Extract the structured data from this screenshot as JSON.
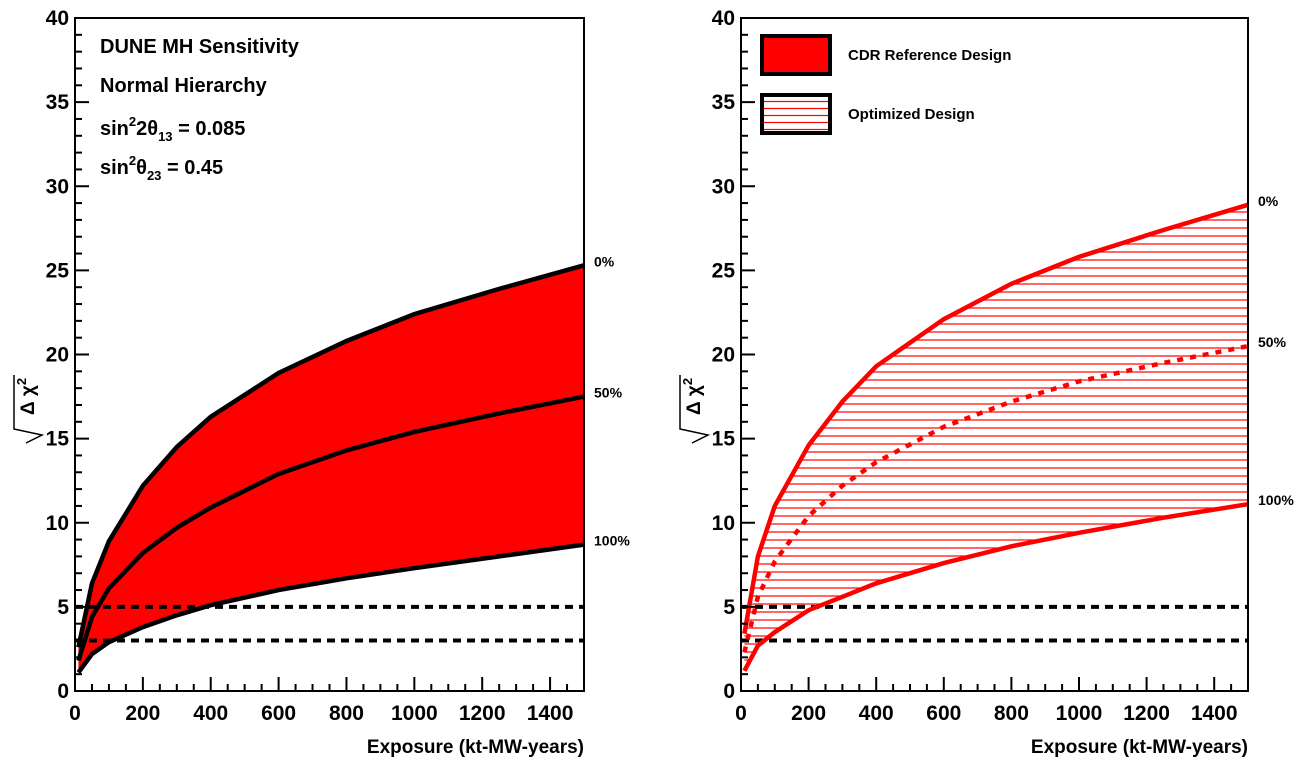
{
  "colors": {
    "band": "#ff0000",
    "line_left": "#000000",
    "line_right": "#ff0000",
    "frame": "#000000"
  },
  "chart_data": [
    {
      "type": "area",
      "xlabel": "Exposure (kt-MW-years)",
      "ylabel_text": "Δ χ",
      "ylabel_exp": "2",
      "xlim": [
        0,
        1500
      ],
      "ylim": [
        0,
        40
      ],
      "x_ticks": [
        "0",
        "200",
        "400",
        "600",
        "800",
        "1000",
        "1200",
        "1400"
      ],
      "y_ticks": [
        "0",
        "5",
        "10",
        "15",
        "20",
        "25",
        "30",
        "35",
        "40"
      ],
      "annotations": {
        "line1": "DUNE MH Sensitivity",
        "line2": "Normal Hierarchy",
        "line3_a": "sin",
        "line3_sup": "2",
        "line3_b": "2θ",
        "line3_sub": "13",
        "line3_c": " = 0.085",
        "line4_a": "sin",
        "line4_sup": "2",
        "line4_b": "θ",
        "line4_sub": "23",
        "line4_c": " = 0.45"
      },
      "reference_lines": [
        3,
        5
      ],
      "fill": "solid",
      "series": [
        {
          "label": "0%",
          "x": [
            10,
            50,
            100,
            200,
            300,
            400,
            600,
            800,
            1000,
            1250,
            1500
          ],
          "y": [
            2.6,
            6.4,
            8.9,
            12.2,
            14.5,
            16.3,
            18.9,
            20.8,
            22.4,
            23.9,
            25.3
          ]
        },
        {
          "label": "50%",
          "x": [
            10,
            50,
            100,
            200,
            300,
            400,
            600,
            800,
            1000,
            1250,
            1500
          ],
          "y": [
            1.8,
            4.4,
            6.1,
            8.2,
            9.7,
            10.9,
            12.9,
            14.3,
            15.4,
            16.5,
            17.5
          ]
        },
        {
          "label": "100%",
          "x": [
            10,
            50,
            100,
            200,
            300,
            400,
            600,
            800,
            1000,
            1250,
            1500
          ],
          "y": [
            1.1,
            2.2,
            2.9,
            3.8,
            4.5,
            5.1,
            6.0,
            6.7,
            7.3,
            8.0,
            8.7
          ]
        }
      ]
    },
    {
      "type": "area",
      "xlabel": "Exposure (kt-MW-years)",
      "ylabel_text": "Δ χ",
      "ylabel_exp": "2",
      "xlim": [
        0,
        1500
      ],
      "ylim": [
        0,
        40
      ],
      "x_ticks": [
        "0",
        "200",
        "400",
        "600",
        "800",
        "1000",
        "1200",
        "1400"
      ],
      "y_ticks": [
        "0",
        "5",
        "10",
        "15",
        "20",
        "25",
        "30",
        "35",
        "40"
      ],
      "legend": {
        "position": "top-left",
        "entries": [
          {
            "label": "CDR Reference Design",
            "style": "solid"
          },
          {
            "label": "Optimized Design",
            "style": "hatched"
          }
        ]
      },
      "reference_lines": [
        3,
        5
      ],
      "fill": "hatched",
      "series": [
        {
          "label": "0%",
          "x": [
            10,
            50,
            100,
            200,
            300,
            400,
            600,
            800,
            1000,
            1250,
            1500
          ],
          "y": [
            3.4,
            8.0,
            11.0,
            14.6,
            17.2,
            19.3,
            22.1,
            24.2,
            25.8,
            27.4,
            28.9
          ]
        },
        {
          "label": "50%",
          "x": [
            10,
            50,
            100,
            200,
            300,
            400,
            600,
            800,
            1000,
            1250,
            1500
          ],
          "y": [
            2.3,
            5.6,
            7.7,
            10.4,
            12.2,
            13.6,
            15.7,
            17.2,
            18.4,
            19.5,
            20.5
          ]
        },
        {
          "label": "100%",
          "x": [
            10,
            50,
            100,
            200,
            300,
            400,
            600,
            800,
            1000,
            1250,
            1500
          ],
          "y": [
            1.2,
            2.7,
            3.5,
            4.8,
            5.6,
            6.4,
            7.6,
            8.6,
            9.4,
            10.3,
            11.1
          ]
        }
      ]
    }
  ]
}
